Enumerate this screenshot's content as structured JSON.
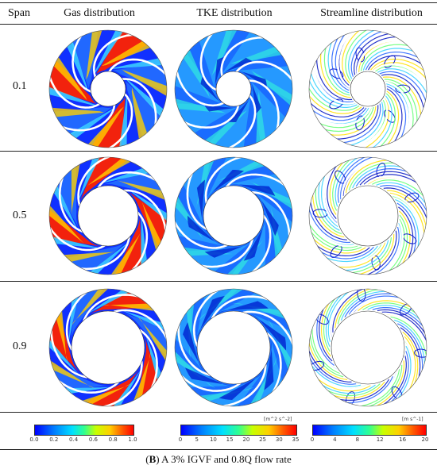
{
  "headers": {
    "span": "Span",
    "gas": "Gas distribution",
    "tke": "TKE distribution",
    "streamline": "Streamline distribution"
  },
  "rows": [
    {
      "span": "0.1"
    },
    {
      "span": "0.5"
    },
    {
      "span": "0.9"
    }
  ],
  "colorbars": {
    "gas": {
      "ticks": [
        "0.0",
        "0.2",
        "0.4",
        "0.6",
        "0.8",
        "1.0"
      ]
    },
    "tke": {
      "unit": "[m^2 s^-2]",
      "ticks": [
        "0",
        "5",
        "10",
        "15",
        "20",
        "25",
        "30",
        "35"
      ]
    },
    "streamline": {
      "unit": "[m s^-1]",
      "ticks": [
        "0",
        "4",
        "8",
        "12",
        "16",
        "20"
      ]
    }
  },
  "caption": {
    "bold": "B",
    "text": " A 3% IGVF and 0.8Q flow rate"
  },
  "colors": {
    "low": "#0000ff",
    "mid": "#30ff90",
    "high": "#ff0000"
  }
}
